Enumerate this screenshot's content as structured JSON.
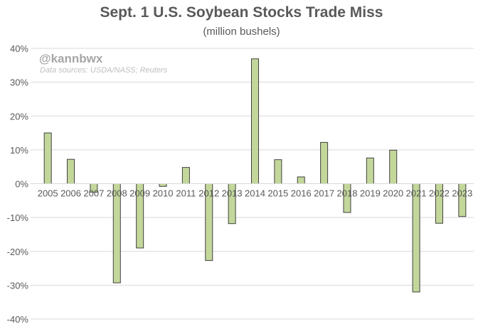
{
  "chart_data": {
    "type": "bar",
    "title": "Sept. 1 U.S. Soybean Stocks Trade Miss",
    "subtitle": "(million bushels)",
    "watermark": "@kannbwx",
    "sources": "Data sources: USDA/NASS; Reuters",
    "xlabel": "",
    "ylabel": "",
    "ylim": [
      -40,
      40
    ],
    "yticks": [
      40,
      30,
      20,
      10,
      0,
      -10,
      -20,
      -30,
      -40
    ],
    "ytick_labels": [
      "40%",
      "30%",
      "20%",
      "10%",
      "0%",
      "-10%",
      "-20%",
      "-30%",
      "-40%"
    ],
    "grid": true,
    "categories": [
      "2005",
      "2006",
      "2007",
      "2008",
      "2009",
      "2010",
      "2011",
      "2012",
      "2013",
      "2014",
      "2015",
      "2016",
      "2017",
      "2018",
      "2019",
      "2020",
      "2021",
      "2022",
      "2023"
    ],
    "values": [
      15.0,
      7.2,
      -2.5,
      -29.3,
      -19.0,
      -0.8,
      4.8,
      -22.7,
      -11.8,
      36.9,
      7.1,
      2.0,
      12.2,
      -8.5,
      7.6,
      9.9,
      -32.0,
      -11.7,
      -9.7
    ],
    "colors": {
      "bar": "#c4d79b",
      "bar_border": "#404040",
      "grid": "#d9d9d9",
      "text": "#595959"
    }
  }
}
